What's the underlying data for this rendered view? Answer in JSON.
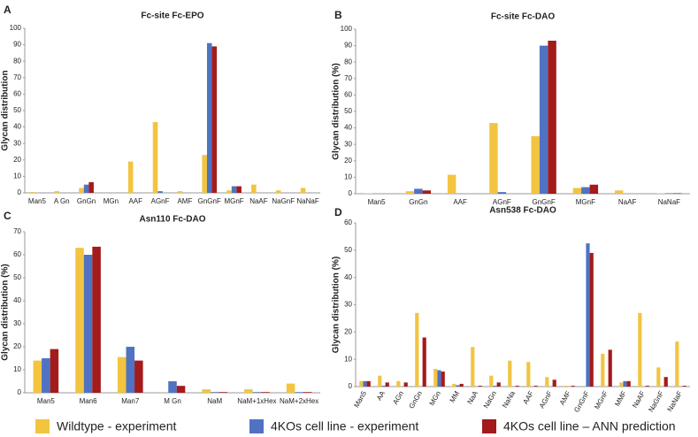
{
  "legend": [
    {
      "name": "Wildtype - experiment",
      "color": "#f2c440"
    },
    {
      "name": "4KOs cell line - experiment",
      "color": "#4f73c2"
    },
    {
      "name": "4KOs cell line – ANN prediction",
      "color": "#a31b1b"
    }
  ],
  "chart_data": [
    {
      "type": "bar",
      "label": "A",
      "title": "Fc-site Fc-EPO",
      "y_label": "Glycan distribution",
      "categories": [
        "Man5",
        "A Gn",
        "GnGn",
        "MGn",
        "AAF",
        "AGnF",
        "AMF",
        "GnGnF",
        "MGnF",
        "NaAF",
        "NaGnF",
        "NaNaF"
      ],
      "series": [
        {
          "values": [
            0.5,
            1,
            3,
            0,
            19,
            43,
            1,
            23,
            1.5,
            5,
            1.5,
            3
          ]
        },
        {
          "values": [
            0,
            0,
            5,
            0,
            0,
            1,
            0,
            91,
            4,
            0,
            0,
            0
          ]
        },
        {
          "values": [
            0,
            0,
            6.5,
            0,
            0,
            0,
            0,
            89,
            4,
            0,
            0,
            0
          ]
        }
      ],
      "ylim": [
        0,
        100
      ],
      "yticks": [
        0,
        10,
        20,
        30,
        40,
        50,
        60,
        70,
        80,
        90,
        100
      ]
    },
    {
      "type": "bar",
      "label": "B",
      "title": "Fc-site Fc-DAO",
      "y_label": "Glycan distribution (%)",
      "categories": [
        "Man5",
        "GnGn",
        "AAF",
        "AGnF",
        "GnGnF",
        "MGnF",
        "NaAF",
        "NaNaF"
      ],
      "series": [
        {
          "values": [
            0.3,
            1.5,
            11.5,
            43,
            35,
            3.5,
            2,
            0.3
          ]
        },
        {
          "values": [
            0,
            3,
            0,
            1,
            90,
            4,
            0,
            0.3
          ]
        },
        {
          "values": [
            0,
            2,
            0,
            0,
            93,
            5.5,
            0,
            0.3
          ]
        }
      ],
      "ylim": [
        0,
        100
      ],
      "yticks": [
        0,
        10,
        20,
        30,
        40,
        50,
        60,
        70,
        80,
        90,
        100
      ]
    },
    {
      "type": "bar",
      "label": "C",
      "title": "Asn110 Fc-DAO",
      "y_label": "Glycan distribution (%)",
      "categories": [
        "Man5",
        "Man6",
        "Man7",
        "M Gn",
        "NaM",
        "NaM+1xHex",
        "NaM+2xHex"
      ],
      "series": [
        {
          "values": [
            14,
            63,
            15.5,
            0,
            1.5,
            1.5,
            4
          ]
        },
        {
          "values": [
            15,
            60,
            20,
            5,
            0.3,
            0.3,
            0.3
          ]
        },
        {
          "values": [
            19,
            63.5,
            14,
            3,
            0.3,
            0.3,
            0.3
          ]
        }
      ],
      "ylim": [
        0,
        70
      ],
      "yticks": [
        0,
        10,
        20,
        30,
        40,
        50,
        60,
        70
      ]
    },
    {
      "type": "bar",
      "label": "D",
      "title": "Asn538 Fc-DAO",
      "y_label": "Glycan distribution (%)",
      "categories": [
        "Man5",
        "AA",
        "AGn",
        "GnGn",
        "MGn",
        "MM",
        "NaA",
        "NaGn",
        "NaNa",
        "AAF",
        "AGnF",
        "AMF",
        "GnGnF",
        "MGnF",
        "MMF",
        "NaAF",
        "NaGnF",
        "NaNaF"
      ],
      "series": [
        {
          "values": [
            2,
            4,
            2,
            27,
            6.5,
            1,
            14.5,
            4,
            9.5,
            9,
            3.5,
            0.3,
            0,
            12,
            1.5,
            27,
            7,
            16.5
          ]
        },
        {
          "values": [
            2,
            0.3,
            0,
            0,
            6,
            0.5,
            0,
            0.3,
            0,
            0,
            0,
            0,
            52.5,
            0,
            2,
            0,
            0,
            0
          ]
        },
        {
          "values": [
            2,
            1.5,
            1.5,
            18,
            5.5,
            1,
            0.3,
            1.5,
            0.3,
            0.3,
            2.5,
            0.3,
            49,
            13.5,
            2,
            0.3,
            3.5,
            0.3
          ]
        }
      ],
      "ylim": [
        0,
        60
      ],
      "yticks": [
        0,
        10,
        20,
        30,
        40,
        50,
        60
      ]
    }
  ]
}
